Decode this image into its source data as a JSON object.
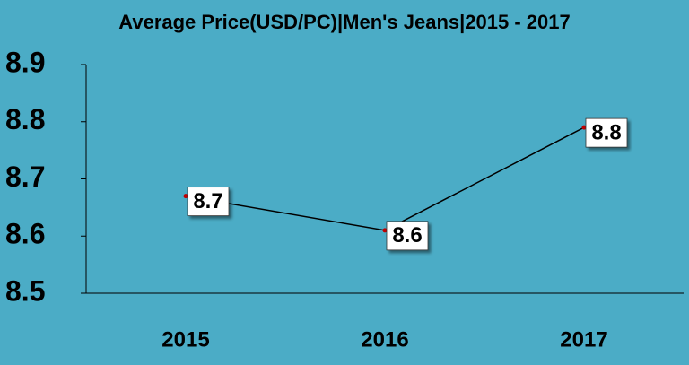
{
  "chart_data": {
    "type": "line",
    "title": "Average Price(USD/PC)|Men's Jeans|2015 - 2017",
    "categories": [
      "2015",
      "2016",
      "2017"
    ],
    "values": [
      8.67,
      8.61,
      8.79
    ],
    "value_labels": [
      "8.7",
      "8.6",
      "8.8"
    ],
    "color": "#000000",
    "marker_color": "#c00000",
    "ylim": [
      8.5,
      8.9
    ],
    "yticks": [
      8.5,
      8.6,
      8.7,
      8.8,
      8.9
    ],
    "grid": false
  }
}
